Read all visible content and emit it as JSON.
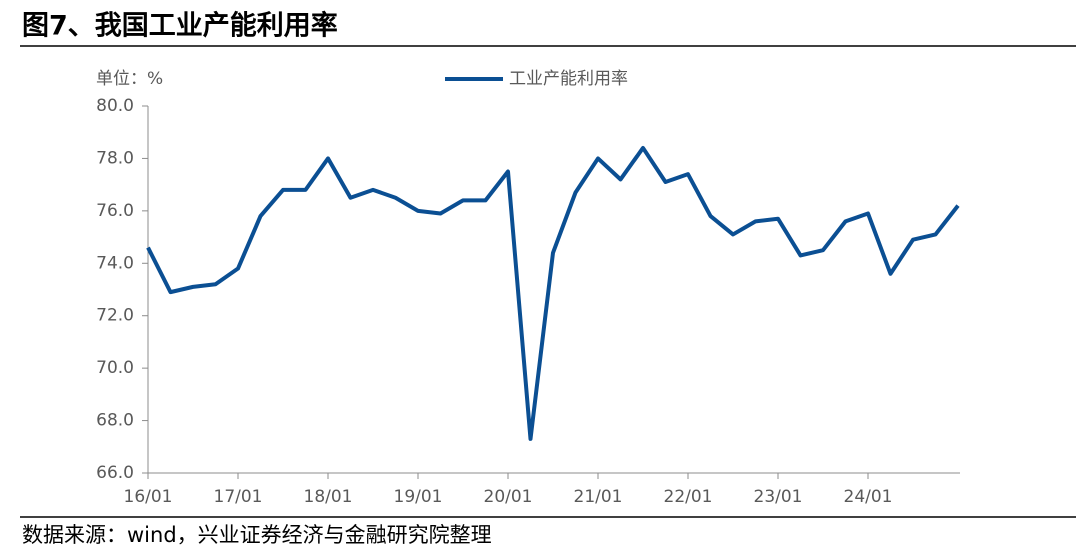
{
  "chart_data": {
    "type": "line",
    "title": "图7、我国工业产能利用率",
    "unit_label": "单位：%",
    "source": "数据来源：wind，兴业证券经济与金融研究院整理",
    "categories": [
      "16/01",
      null,
      null,
      null,
      "17/01",
      null,
      null,
      null,
      "18/01",
      null,
      null,
      null,
      "19/01",
      null,
      null,
      null,
      "20/01",
      null,
      null,
      null,
      "21/01",
      null,
      null,
      null,
      "22/01",
      null,
      null,
      null,
      "23/01",
      null,
      null,
      null,
      "24/01",
      null,
      null,
      null,
      null
    ],
    "series": [
      {
        "name": "工业产能利用率",
        "color": "#0b4f93",
        "values": [
          74.6,
          72.9,
          73.1,
          73.2,
          73.8,
          75.8,
          76.8,
          76.8,
          78.0,
          76.5,
          76.8,
          76.5,
          76.0,
          75.9,
          76.4,
          76.4,
          77.5,
          67.3,
          74.4,
          76.7,
          78.0,
          77.2,
          78.4,
          77.1,
          77.4,
          75.8,
          75.1,
          75.6,
          75.7,
          74.3,
          74.5,
          75.6,
          75.9,
          73.6,
          74.9,
          75.1,
          76.2
        ]
      }
    ],
    "ylim": [
      66,
      80
    ],
    "yticks": [
      {
        "value": 66,
        "label": "66.0"
      },
      {
        "value": 68,
        "label": "68.0"
      },
      {
        "value": 70,
        "label": "70.0"
      },
      {
        "value": 72,
        "label": "72.0"
      },
      {
        "value": 74,
        "label": "74.0"
      },
      {
        "value": 76,
        "label": "76.0"
      },
      {
        "value": 78,
        "label": "78.0"
      },
      {
        "value": 80,
        "label": "80.0"
      }
    ],
    "legend": "top"
  }
}
